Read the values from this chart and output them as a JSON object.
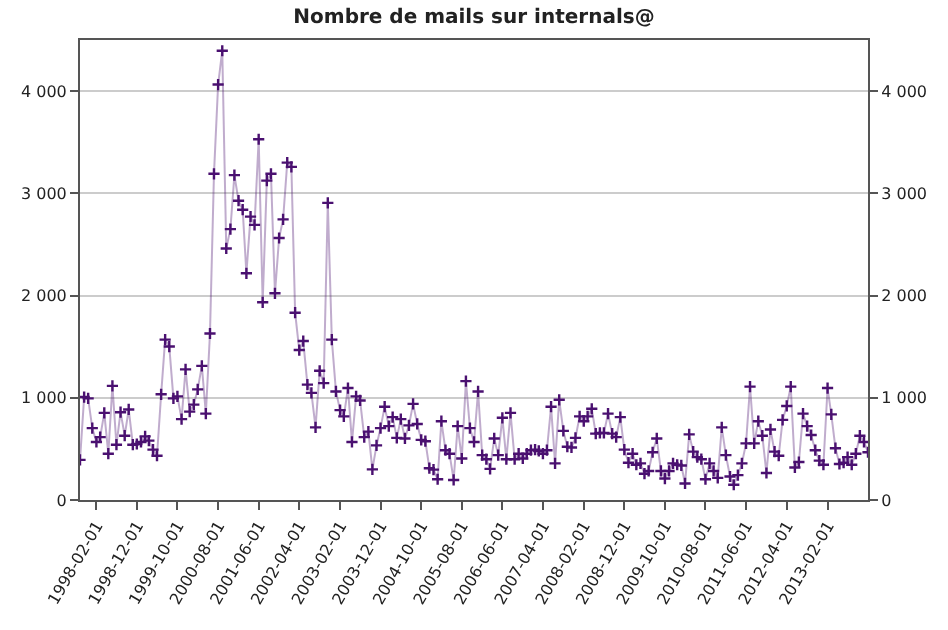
{
  "chart_data": {
    "type": "line",
    "title": "Nombre de mails sur internals@",
    "x": [
      "1997-10",
      "1997-11",
      "1997-12",
      "1998-01",
      "1998-02",
      "1998-03",
      "1998-04",
      "1998-05",
      "1998-06",
      "1998-07",
      "1998-08",
      "1998-09",
      "1998-10",
      "1998-11",
      "1998-12",
      "1999-01",
      "1999-02",
      "1999-03",
      "1999-04",
      "1999-05",
      "1999-06",
      "1999-07",
      "1999-08",
      "1999-09",
      "1999-10",
      "1999-11",
      "1999-12",
      "2000-01",
      "2000-02",
      "2000-03",
      "2000-04",
      "2000-05",
      "2000-06",
      "2000-07",
      "2000-08",
      "2000-09",
      "2000-10",
      "2000-11",
      "2000-12",
      "2001-01",
      "2001-02",
      "2001-03",
      "2001-04",
      "2001-05",
      "2001-06",
      "2001-07",
      "2001-08",
      "2001-09",
      "2001-10",
      "2001-11",
      "2001-12",
      "2002-01",
      "2002-02",
      "2002-03",
      "2002-04",
      "2002-05",
      "2002-06",
      "2002-07",
      "2002-08",
      "2002-09",
      "2002-10",
      "2002-11",
      "2002-12",
      "2003-01",
      "2003-02",
      "2003-03",
      "2003-04",
      "2003-05",
      "2003-06",
      "2003-07",
      "2003-08",
      "2003-09",
      "2003-10",
      "2003-11",
      "2003-12",
      "2004-01",
      "2004-02",
      "2004-03",
      "2004-04",
      "2004-05",
      "2004-06",
      "2004-07",
      "2004-08",
      "2004-09",
      "2004-10",
      "2004-11",
      "2004-12",
      "2005-01",
      "2005-02",
      "2005-03",
      "2005-04",
      "2005-05",
      "2005-06",
      "2005-07",
      "2005-08",
      "2005-09",
      "2005-10",
      "2005-11",
      "2005-12",
      "2006-01",
      "2006-02",
      "2006-03",
      "2006-04",
      "2006-05",
      "2006-06",
      "2006-07",
      "2006-08",
      "2006-09",
      "2006-10",
      "2006-11",
      "2006-12",
      "2007-01",
      "2007-02",
      "2007-03",
      "2007-04",
      "2007-05",
      "2007-06",
      "2007-07",
      "2007-08",
      "2007-09",
      "2007-10",
      "2007-11",
      "2007-12",
      "2008-01",
      "2008-02",
      "2008-03",
      "2008-04",
      "2008-05",
      "2008-06",
      "2008-07",
      "2008-08",
      "2008-09",
      "2008-10",
      "2008-11",
      "2008-12",
      "2009-01",
      "2009-02",
      "2009-03",
      "2009-04",
      "2009-05",
      "2009-06",
      "2009-07",
      "2009-08",
      "2009-09",
      "2009-10",
      "2009-11",
      "2009-12",
      "2010-01",
      "2010-02",
      "2010-03",
      "2010-04",
      "2010-05",
      "2010-06",
      "2010-07",
      "2010-08",
      "2010-09",
      "2010-10",
      "2010-11",
      "2010-12",
      "2011-01",
      "2011-02",
      "2011-03",
      "2011-04",
      "2011-05",
      "2011-06",
      "2011-07",
      "2011-08",
      "2011-09",
      "2011-10",
      "2011-11",
      "2011-12",
      "2012-01",
      "2012-02",
      "2012-03",
      "2012-04",
      "2012-05",
      "2012-06",
      "2012-07",
      "2012-08",
      "2012-09",
      "2012-10",
      "2012-11",
      "2012-12",
      "2013-01",
      "2013-02",
      "2013-03",
      "2013-04",
      "2013-05",
      "2013-06",
      "2013-07",
      "2013-08",
      "2013-09",
      "2013-10",
      "2013-11",
      "2013-12"
    ],
    "series": [
      {
        "color": "#4a1070",
        "values": [
          392,
          1007,
          994,
          703,
          568,
          615,
          852,
          453,
          1116,
          541,
          859,
          629,
          886,
          541,
          548,
          568,
          622,
          581,
          493,
          433,
          1034,
          1569,
          1501,
          994,
          1014,
          791,
          1278,
          865,
          933,
          1082,
          1312,
          845,
          1629,
          3191,
          4064,
          4395,
          2461,
          2650,
          3178,
          2928,
          2840,
          2218,
          2772,
          2691,
          3529,
          1934,
          3124,
          3191,
          2022,
          2563,
          2745,
          3300,
          3259,
          1832,
          1467,
          1555,
          1129,
          1048,
          710,
          1264,
          1143,
          2907,
          1569,
          1062,
          879,
          818,
          1095,
          568,
          1014,
          974,
          615,
          669,
          300,
          534,
          703,
          913,
          723,
          811,
          608,
          791,
          602,
          730,
          940,
          744,
          588,
          575,
          311,
          297,
          203,
          771,
          487,
          453,
          196,
          723,
          406,
          1163,
          703,
          568,
          1062,
          439,
          399,
          304,
          602,
          439,
          804,
          399,
          852,
          399,
          453,
          406,
          453,
          487,
          493,
          480,
          453,
          487,
          913,
          358,
          980,
          676,
          521,
          514,
          608,
          818,
          771,
          818,
          892,
          649,
          656,
          656,
          845,
          649,
          615,
          811,
          493,
          365,
          453,
          345,
          358,
          257,
          284,
          467,
          602,
          284,
          210,
          284,
          358,
          345,
          338,
          162,
          642,
          473,
          419,
          399,
          203,
          358,
          284,
          216,
          710,
          439,
          230,
          149,
          243,
          358,
          554,
          1109,
          554,
          771,
          629,
          264,
          690,
          473,
          433,
          784,
          920,
          1109,
          318,
          372,
          845,
          723,
          636,
          487,
          385,
          345,
          1095,
          838,
          507,
          352,
          365,
          419,
          345,
          453,
          629,
          568,
          467
        ]
      }
    ],
    "xlim": [
      "1997-10",
      "2013-12"
    ],
    "xticks": [
      "1998-02-01",
      "1998-12-01",
      "1999-10-01",
      "2000-08-01",
      "2001-06-01",
      "2002-04-01",
      "2003-02-01",
      "2003-12-01",
      "2004-10-01",
      "2005-08-01",
      "2006-06-01",
      "2007-04-01",
      "2008-02-01",
      "2008-12-01",
      "2009-10-01",
      "2010-08-01",
      "2011-06-01",
      "2012-04-01",
      "2013-02-01"
    ],
    "ylim": [
      0,
      4500
    ],
    "yticks": [
      {
        "value": 0,
        "label": "0"
      },
      {
        "value": 1000,
        "label": "1 000"
      },
      {
        "value": 2000,
        "label": "2 000"
      },
      {
        "value": 3000,
        "label": "3 000"
      },
      {
        "value": 4000,
        "label": "4 000"
      }
    ],
    "y2lim": [
      0,
      4500
    ],
    "y2ticks": [
      {
        "value": 0,
        "label": "0"
      },
      {
        "value": 1000,
        "label": "1 000"
      },
      {
        "value": 2000,
        "label": "2 000"
      },
      {
        "value": 3000,
        "label": "3 000"
      },
      {
        "value": 4000,
        "label": "4 000"
      }
    ],
    "grid": "y",
    "marker": "cross",
    "line_style": "solid"
  }
}
